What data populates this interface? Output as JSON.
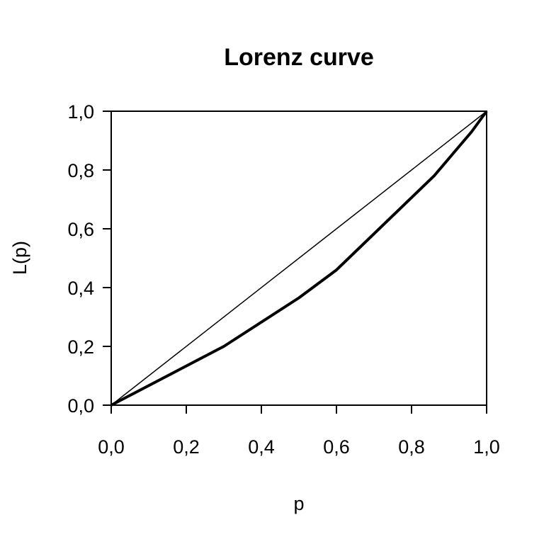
{
  "chart_data": {
    "type": "line",
    "title": "Lorenz curve",
    "xlabel": "p",
    "ylabel": "L(p)",
    "xlim": [
      0,
      1
    ],
    "ylim": [
      0,
      1
    ],
    "grid": false,
    "x_ticks": [
      0,
      0.2,
      0.4,
      0.6,
      0.8,
      1.0
    ],
    "y_ticks": [
      0,
      0.2,
      0.4,
      0.6,
      0.8,
      1.0
    ],
    "x_tick_labels": [
      "0,0",
      "0,2",
      "0,4",
      "0,6",
      "0,8",
      "1,0"
    ],
    "y_tick_labels": [
      "0,0",
      "0,2",
      "0,4",
      "0,6",
      "0,8",
      "1,0"
    ],
    "series": [
      {
        "role": "equality-line",
        "x": [
          0,
          1
        ],
        "y": [
          0,
          1
        ]
      },
      {
        "role": "lorenz-curve",
        "x": [
          0,
          0.3,
          0.5,
          0.6,
          0.86,
          0.96,
          1.0
        ],
        "y": [
          0,
          0.2,
          0.365,
          0.46,
          0.78,
          0.93,
          1.0
        ]
      }
    ]
  }
}
